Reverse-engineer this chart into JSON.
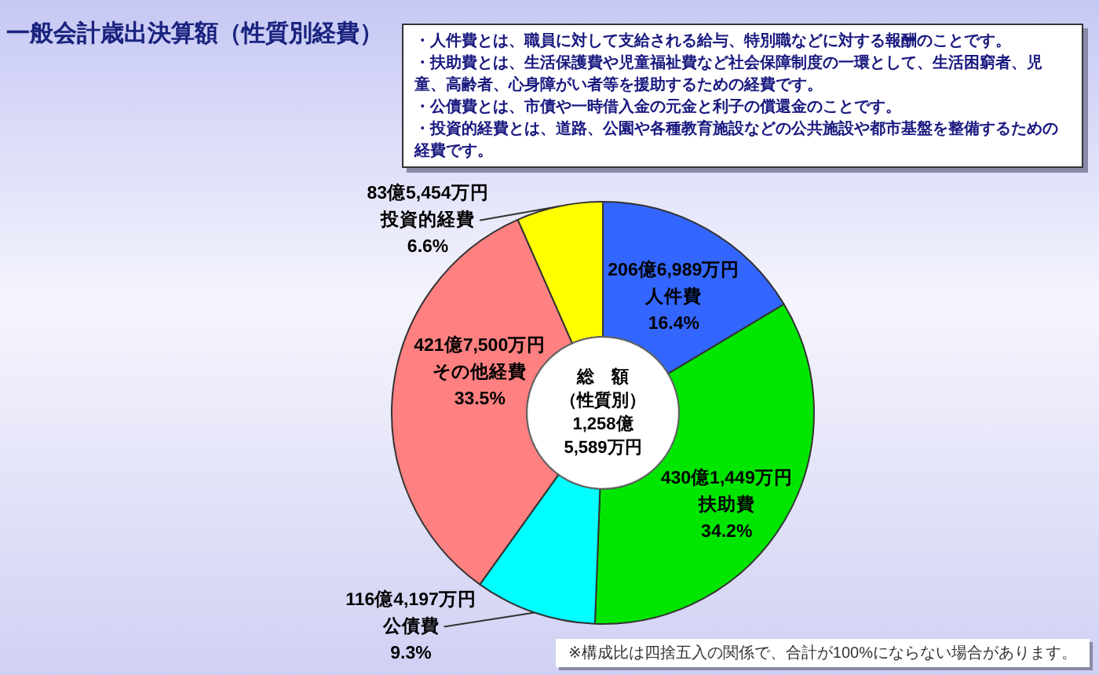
{
  "chart_data": {
    "type": "donut",
    "title": "一般会計歳出決算額（性質別経費）",
    "categories": [
      "人件費",
      "扶助費",
      "公債費",
      "その他経費",
      "投資的経費"
    ],
    "values": [
      16.4,
      34.2,
      9.3,
      33.5,
      6.6
    ],
    "colors": [
      "#3366ff",
      "#00e600",
      "#00ffff",
      "#ff8080",
      "#ffff00"
    ],
    "value_labels": [
      "16.4%",
      "34.2%",
      "9.3%",
      "33.5%",
      "6.6%"
    ],
    "annotations": [
      {
        "text": "206億6,989万円",
        "x": "人件費"
      },
      {
        "text": "430億1,449万円",
        "x": "扶助費"
      },
      {
        "text": "116億4,197万円",
        "x": "公債費"
      },
      {
        "text": "421億7,500万円",
        "x": "その他経費"
      },
      {
        "text": "83億5,454万円",
        "x": "投資的経費"
      },
      "総　額（性質別）1,258億5,589万円",
      "・人件費とは、職員に対して支給される給与、特別職などに対する報酬のことです。",
      "・扶助費とは、生活保護費や児童福祉費など社会保障制度の一環として、生活困窮者、児童、高齢者、心身障がい者等を援助するための経費です。",
      "・公債費とは、市債や一時借入金の元金と利子の償還金のことです。",
      "・投資的経費とは、道路、公園や各種教育施設などの公共施設や都市基盤を整備するための経費です。",
      "※構成比は四捨五入の関係で、合計が100%にならない場合があります。"
    ]
  }
}
